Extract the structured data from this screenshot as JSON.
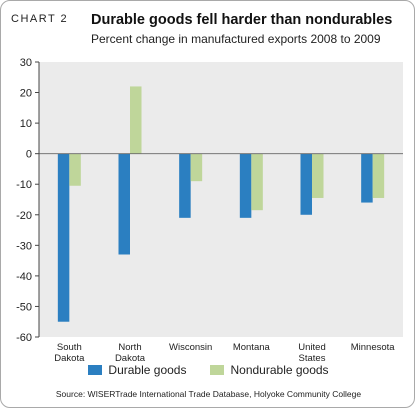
{
  "header": {
    "label": "CHART 2",
    "title": "Durable goods fell harder than nondurables",
    "subtitle": "Percent change in manufactured exports 2008 to 2009"
  },
  "source": "Source: WISERTrade International Trade Database, Holyoke Community College",
  "chart_data": {
    "type": "bar",
    "categories": [
      [
        "South",
        "Dakota"
      ],
      [
        "North",
        "Dakota"
      ],
      [
        "Wisconsin"
      ],
      [
        "Montana"
      ],
      [
        "United",
        "States"
      ],
      [
        "Minnesota"
      ]
    ],
    "series": [
      {
        "name": "Durable goods",
        "color": "#2b7fc1",
        "values": [
          -55,
          -33,
          -21,
          -21,
          -20,
          -16
        ]
      },
      {
        "name": "Nondurable goods",
        "color": "#bfd69a",
        "values": [
          -10.5,
          22,
          -9,
          -18.5,
          -14.5,
          -14.5
        ]
      }
    ],
    "ylim": [
      -60,
      30
    ],
    "yticks": [
      30,
      20,
      10,
      0,
      -10,
      -20,
      -30,
      -40,
      -50,
      -60
    ],
    "grid": false,
    "legend": "bottom"
  }
}
